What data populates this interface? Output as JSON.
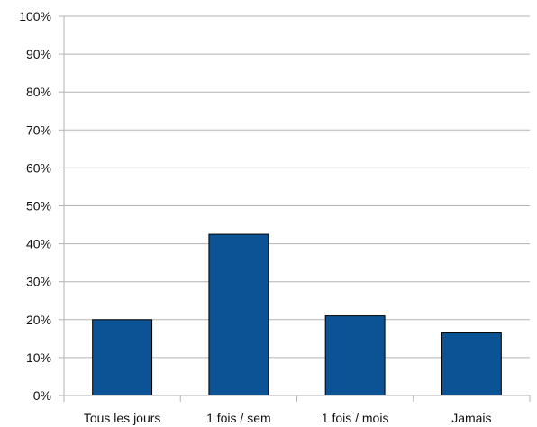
{
  "chart_data": {
    "type": "bar",
    "categories": [
      "Tous les jours",
      "1 fois / sem",
      "1 fois / mois",
      "Jamais"
    ],
    "values": [
      20,
      42.5,
      21,
      16.5
    ],
    "ylim": [
      0,
      100
    ],
    "yticks": [
      "0%",
      "10%",
      "20%",
      "30%",
      "40%",
      "50%",
      "60%",
      "70%",
      "80%",
      "90%",
      "100%"
    ],
    "grid": true,
    "legend": "none",
    "bar_color": "#0b5394",
    "title": "",
    "xlabel": "",
    "ylabel": ""
  }
}
